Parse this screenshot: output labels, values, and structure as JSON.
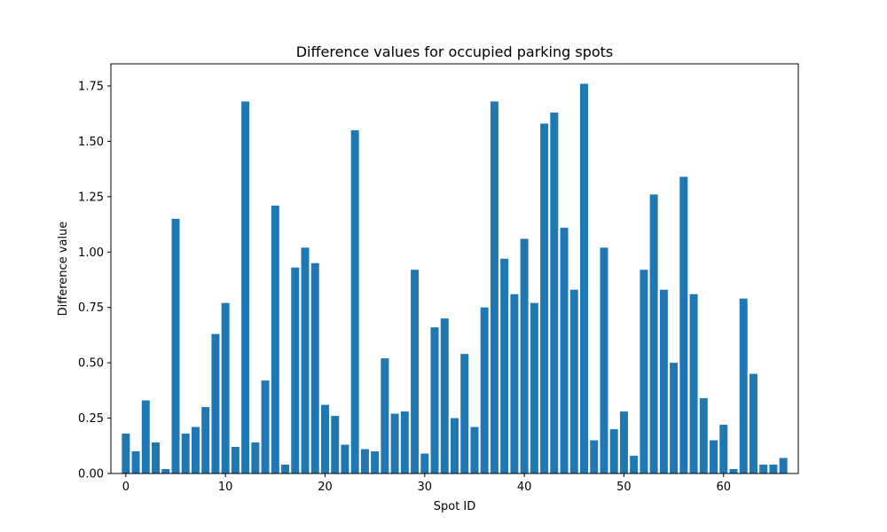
{
  "chart_data": {
    "type": "bar",
    "title": "Difference values for occupied parking spots",
    "xlabel": "Spot ID",
    "ylabel": "Difference value",
    "bar_color": "#1f77b4",
    "xlim": [
      -1.5,
      67.5
    ],
    "ylim": [
      0,
      1.85
    ],
    "x_ticks": [
      0,
      10,
      20,
      30,
      40,
      50,
      60
    ],
    "x_tick_labels": [
      "0",
      "10",
      "20",
      "30",
      "40",
      "50",
      "60"
    ],
    "y_ticks": [
      0,
      0.25,
      0.5,
      0.75,
      1.0,
      1.25,
      1.5,
      1.75
    ],
    "y_tick_labels": [
      "0.00",
      "0.25",
      "0.50",
      "0.75",
      "1.00",
      "1.25",
      "1.50",
      "1.75"
    ],
    "grid": false,
    "x": [
      0,
      1,
      2,
      3,
      4,
      5,
      6,
      7,
      8,
      9,
      10,
      11,
      12,
      13,
      14,
      15,
      16,
      17,
      18,
      19,
      20,
      21,
      22,
      23,
      24,
      25,
      26,
      27,
      28,
      29,
      30,
      31,
      32,
      33,
      34,
      35,
      36,
      37,
      38,
      39,
      40,
      41,
      42,
      43,
      44,
      45,
      46,
      47,
      48,
      49,
      50,
      51,
      52,
      53,
      54,
      55,
      56,
      57,
      58,
      59,
      60,
      61,
      62,
      63,
      64,
      65,
      66
    ],
    "values": [
      0.18,
      0.1,
      0.33,
      0.14,
      0.02,
      1.15,
      0.18,
      0.21,
      0.3,
      0.63,
      0.77,
      0.12,
      1.68,
      0.14,
      0.42,
      1.21,
      0.04,
      0.93,
      1.02,
      0.95,
      0.31,
      0.26,
      0.13,
      1.55,
      0.11,
      0.1,
      0.52,
      0.27,
      0.28,
      0.92,
      0.09,
      0.66,
      0.7,
      0.25,
      0.54,
      0.21,
      0.75,
      1.68,
      0.97,
      0.81,
      1.06,
      0.77,
      1.58,
      1.63,
      1.11,
      0.83,
      1.76,
      0.15,
      1.02,
      0.2,
      0.28,
      0.08,
      0.92,
      1.26,
      0.83,
      0.5,
      1.34,
      0.81,
      0.34,
      0.15,
      0.22,
      0.02,
      0.79,
      0.45,
      0.04,
      0.04,
      0.07
    ]
  }
}
